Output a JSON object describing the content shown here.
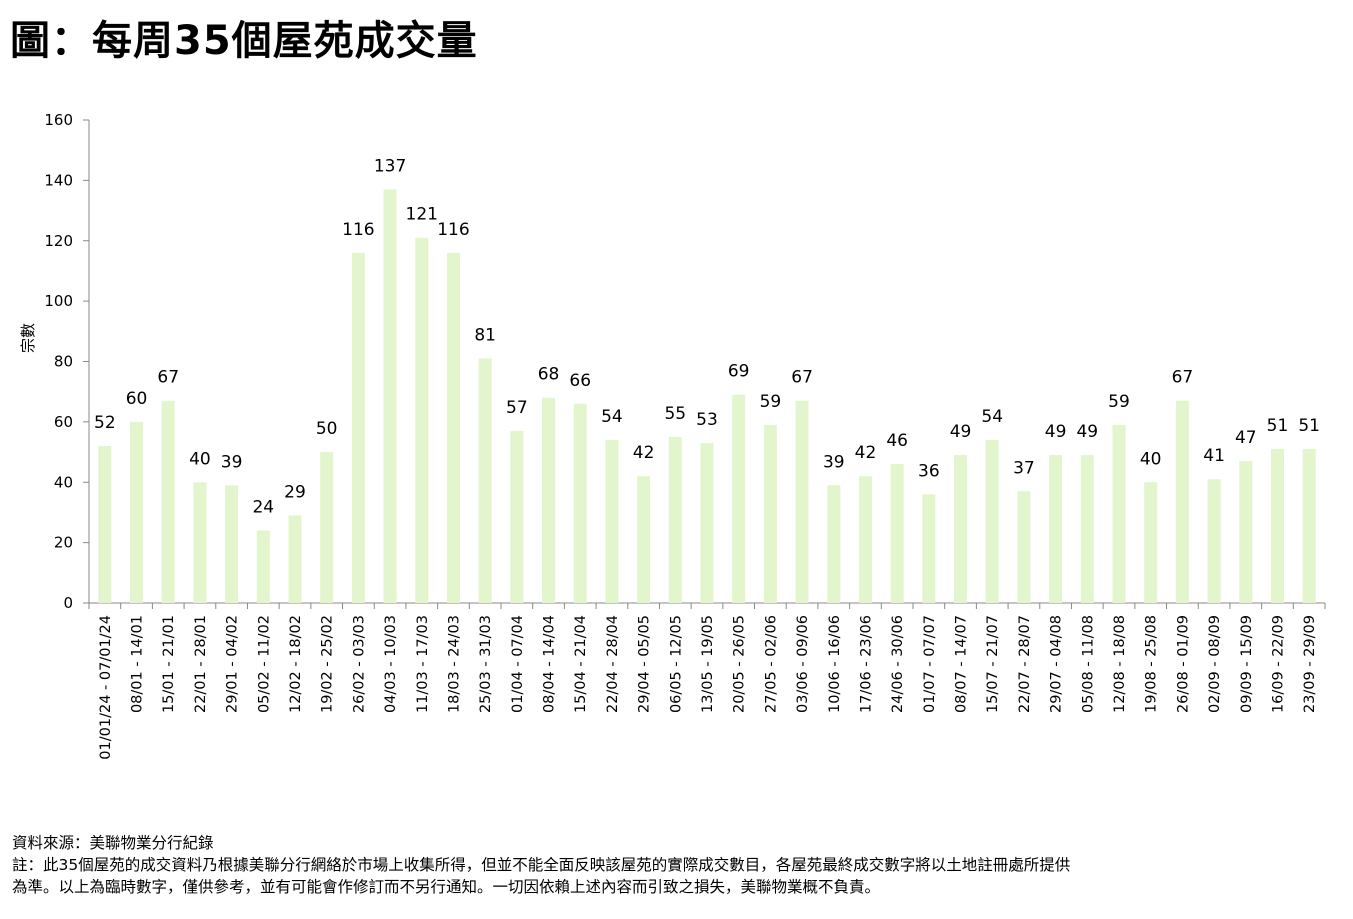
{
  "page_title": "圖：每周35個屋苑成交量",
  "chart_data": {
    "type": "bar",
    "ylabel": "宗數",
    "xlabel": "",
    "ylim": [
      0,
      160
    ],
    "yticks": [
      0,
      20,
      40,
      60,
      80,
      100,
      120,
      140,
      160
    ],
    "grid": false,
    "legend": "none",
    "bar_color": "#e2f5cc",
    "categories": [
      "01/01/24 - 07/01/24",
      "08/01 - 14/01",
      "15/01 - 21/01",
      "22/01 - 28/01",
      "29/01 - 04/02",
      "05/02 - 11/02",
      "12/02 - 18/02",
      "19/02 - 25/02",
      "26/02 - 03/03",
      "04/03 - 10/03",
      "11/03 - 17/03",
      "18/03 - 24/03",
      "25/03 - 31/03",
      "01/04 - 07/04",
      "08/04 - 14/04",
      "15/04 - 21/04",
      "22/04 - 28/04",
      "29/04 - 05/05",
      "06/05 - 12/05",
      "13/05 - 19/05",
      "20/05 - 26/05",
      "27/05 - 02/06",
      "03/06 - 09/06",
      "10/06 - 16/06",
      "17/06 - 23/06",
      "24/06 - 30/06",
      "01/07 - 07/07",
      "08/07 - 14/07",
      "15/07 - 21/07",
      "22/07 - 28/07",
      "29/07 - 04/08",
      "05/08 - 11/08",
      "12/08 - 18/08",
      "19/08 - 25/08",
      "26/08 - 01/09",
      "02/09 - 08/09",
      "09/09 - 15/09",
      "16/09 - 22/09",
      "23/09 - 29/09"
    ],
    "values": [
      52,
      60,
      67,
      40,
      39,
      24,
      29,
      50,
      116,
      137,
      121,
      116,
      81,
      57,
      68,
      66,
      54,
      42,
      55,
      53,
      69,
      59,
      67,
      39,
      42,
      46,
      36,
      49,
      54,
      37,
      49,
      49,
      59,
      40,
      67,
      41,
      47,
      51,
      51
    ]
  },
  "notes": {
    "source": "資料來源：美聯物業分行紀錄",
    "note_line1": "註：此35個屋苑的成交資料乃根據美聯分行網絡於市場上收集所得，但並不能全面反映該屋苑的實際成交數目，各屋苑最終成交數字將以土地註冊處所提供",
    "note_line2": "為準。以上為臨時數字，僅供參考，並有可能會作修訂而不另行通知。一切因依賴上述內容而引致之損失，美聯物業概不負責。"
  }
}
